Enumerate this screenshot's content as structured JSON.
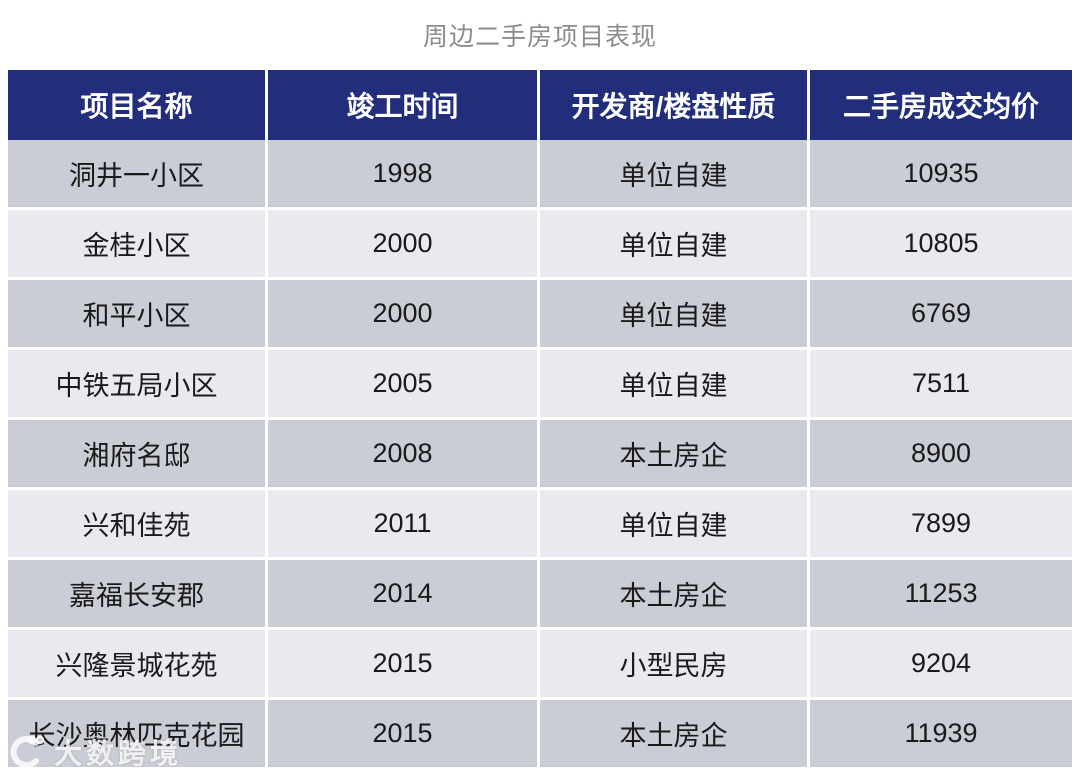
{
  "chart_data": {
    "type": "table",
    "title": "周边二手房项目表现",
    "columns": [
      "项目名称",
      "竣工时间",
      "开发商/楼盘性质",
      "二手房成交均价"
    ],
    "rows": [
      [
        "洞井一小区",
        "1998",
        "单位自建",
        "10935"
      ],
      [
        "金桂小区",
        "2000",
        "单位自建",
        "10805"
      ],
      [
        "和平小区",
        "2000",
        "单位自建",
        "6769"
      ],
      [
        "中铁五局小区",
        "2005",
        "单位自建",
        "7511"
      ],
      [
        "湘府名邸",
        "2008",
        "本土房企",
        "8900"
      ],
      [
        "兴和佳苑",
        "2011",
        "单位自建",
        "7899"
      ],
      [
        "嘉福长安郡",
        "2014",
        "本土房企",
        "11253"
      ],
      [
        "兴隆景城花苑",
        "2015",
        "小型民房",
        "9204"
      ],
      [
        "长沙奥林匹克花园",
        "2015",
        "本土房企",
        "11939"
      ]
    ],
    "layout": {
      "legend": "none",
      "grid": "off",
      "row_striping": [
        "dark",
        "light"
      ]
    }
  },
  "watermark": {
    "text": "大数跨境"
  },
  "colors": {
    "header_bg": "#222d7b",
    "header_text": "#ffffff",
    "row_dark_bg": "#caccd6",
    "row_light_bg": "#e9eaef",
    "body_text": "#1a1a1a",
    "title_text": "#8c8c8c",
    "separator": "#ffffff"
  }
}
